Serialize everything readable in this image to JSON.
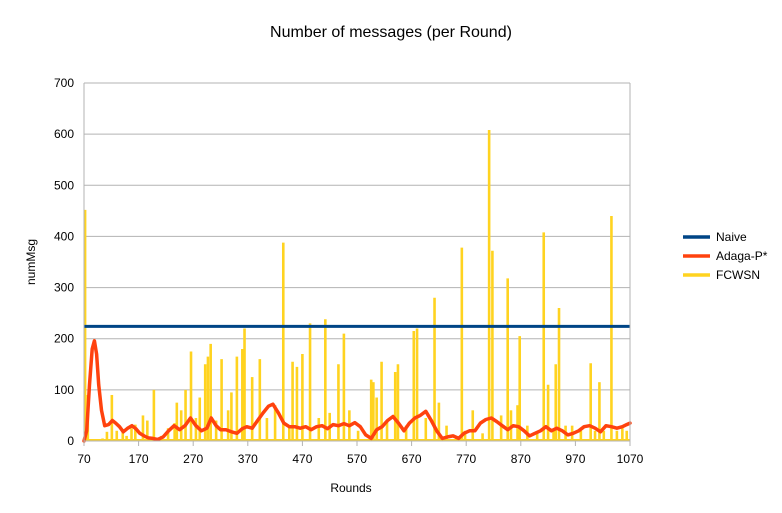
{
  "chart_data": {
    "type": "line",
    "title": "Number of messages (per Round)",
    "xlabel": "Rounds",
    "ylabel": "numMsg",
    "xlim": [
      70,
      1070
    ],
    "ylim": [
      0,
      700
    ],
    "x_ticks": [
      "70",
      "170",
      "270",
      "370",
      "470",
      "570",
      "670",
      "770",
      "870",
      "970",
      "1070"
    ],
    "y_ticks": [
      "0",
      "100",
      "200",
      "300",
      "400",
      "500",
      "600",
      "700"
    ],
    "grid": "horizontal",
    "legend_position": "right",
    "series": [
      {
        "name": "Naive",
        "color": "#004586",
        "points": [
          [
            70,
            224
          ],
          [
            1070,
            224
          ]
        ]
      },
      {
        "name": "Adaga-P*",
        "color": "#ff420e",
        "points": [
          [
            70,
            0
          ],
          [
            75,
            20
          ],
          [
            80,
            110
          ],
          [
            85,
            180
          ],
          [
            89,
            196
          ],
          [
            93,
            170
          ],
          [
            97,
            110
          ],
          [
            102,
            60
          ],
          [
            108,
            30
          ],
          [
            115,
            32
          ],
          [
            122,
            40
          ],
          [
            128,
            35
          ],
          [
            135,
            28
          ],
          [
            142,
            18
          ],
          [
            150,
            25
          ],
          [
            158,
            30
          ],
          [
            165,
            24
          ],
          [
            172,
            15
          ],
          [
            180,
            10
          ],
          [
            188,
            6
          ],
          [
            196,
            5
          ],
          [
            205,
            3
          ],
          [
            215,
            8
          ],
          [
            225,
            20
          ],
          [
            235,
            30
          ],
          [
            245,
            22
          ],
          [
            255,
            30
          ],
          [
            265,
            45
          ],
          [
            275,
            30
          ],
          [
            285,
            20
          ],
          [
            295,
            25
          ],
          [
            303,
            45
          ],
          [
            312,
            30
          ],
          [
            320,
            22
          ],
          [
            330,
            22
          ],
          [
            340,
            18
          ],
          [
            350,
            15
          ],
          [
            360,
            24
          ],
          [
            368,
            28
          ],
          [
            378,
            25
          ],
          [
            388,
            40
          ],
          [
            398,
            55
          ],
          [
            408,
            68
          ],
          [
            416,
            72
          ],
          [
            426,
            55
          ],
          [
            436,
            35
          ],
          [
            446,
            28
          ],
          [
            456,
            28
          ],
          [
            466,
            25
          ],
          [
            476,
            28
          ],
          [
            486,
            22
          ],
          [
            496,
            28
          ],
          [
            506,
            30
          ],
          [
            516,
            24
          ],
          [
            526,
            32
          ],
          [
            536,
            30
          ],
          [
            546,
            34
          ],
          [
            556,
            30
          ],
          [
            566,
            36
          ],
          [
            576,
            28
          ],
          [
            586,
            12
          ],
          [
            596,
            5
          ],
          [
            606,
            22
          ],
          [
            616,
            28
          ],
          [
            626,
            40
          ],
          [
            636,
            48
          ],
          [
            646,
            35
          ],
          [
            656,
            20
          ],
          [
            666,
            35
          ],
          [
            676,
            45
          ],
          [
            686,
            50
          ],
          [
            696,
            58
          ],
          [
            706,
            40
          ],
          [
            716,
            20
          ],
          [
            726,
            5
          ],
          [
            736,
            8
          ],
          [
            746,
            10
          ],
          [
            756,
            5
          ],
          [
            766,
            15
          ],
          [
            776,
            20
          ],
          [
            786,
            20
          ],
          [
            796,
            35
          ],
          [
            806,
            42
          ],
          [
            816,
            45
          ],
          [
            826,
            38
          ],
          [
            836,
            30
          ],
          [
            846,
            22
          ],
          [
            856,
            30
          ],
          [
            866,
            28
          ],
          [
            876,
            20
          ],
          [
            886,
            10
          ],
          [
            896,
            15
          ],
          [
            906,
            20
          ],
          [
            916,
            28
          ],
          [
            926,
            20
          ],
          [
            936,
            25
          ],
          [
            946,
            20
          ],
          [
            956,
            12
          ],
          [
            966,
            15
          ],
          [
            976,
            20
          ],
          [
            986,
            28
          ],
          [
            996,
            30
          ],
          [
            1006,
            25
          ],
          [
            1016,
            18
          ],
          [
            1026,
            30
          ],
          [
            1036,
            28
          ],
          [
            1046,
            25
          ],
          [
            1056,
            28
          ],
          [
            1064,
            32
          ],
          [
            1070,
            35
          ]
        ]
      },
      {
        "name": "FCWSN",
        "color": "#ffd320",
        "spikes": [
          [
            72,
            452
          ],
          [
            77,
            90
          ],
          [
            104,
            5
          ],
          [
            112,
            18
          ],
          [
            121,
            90
          ],
          [
            130,
            20
          ],
          [
            141,
            22
          ],
          [
            148,
            10
          ],
          [
            157,
            25
          ],
          [
            164,
            32
          ],
          [
            178,
            50
          ],
          [
            186,
            40
          ],
          [
            198,
            100
          ],
          [
            212,
            10
          ],
          [
            224,
            25
          ],
          [
            236,
            35
          ],
          [
            240,
            75
          ],
          [
            248,
            60
          ],
          [
            256,
            100
          ],
          [
            266,
            175
          ],
          [
            275,
            45
          ],
          [
            282,
            85
          ],
          [
            292,
            150
          ],
          [
            297,
            165
          ],
          [
            302,
            190
          ],
          [
            312,
            40
          ],
          [
            322,
            160
          ],
          [
            334,
            60
          ],
          [
            340,
            95
          ],
          [
            350,
            165
          ],
          [
            360,
            180
          ],
          [
            364,
            220
          ],
          [
            378,
            125
          ],
          [
            392,
            160
          ],
          [
            405,
            45
          ],
          [
            420,
            70
          ],
          [
            435,
            388
          ],
          [
            446,
            30
          ],
          [
            452,
            155
          ],
          [
            460,
            145
          ],
          [
            470,
            170
          ],
          [
            484,
            230
          ],
          [
            500,
            45
          ],
          [
            512,
            238
          ],
          [
            520,
            55
          ],
          [
            536,
            150
          ],
          [
            546,
            210
          ],
          [
            556,
            60
          ],
          [
            572,
            20
          ],
          [
            596,
            120
          ],
          [
            600,
            115
          ],
          [
            606,
            85
          ],
          [
            615,
            155
          ],
          [
            625,
            40
          ],
          [
            640,
            135
          ],
          [
            645,
            150
          ],
          [
            660,
            30
          ],
          [
            674,
            215
          ],
          [
            680,
            220
          ],
          [
            696,
            45
          ],
          [
            712,
            280
          ],
          [
            720,
            75
          ],
          [
            734,
            30
          ],
          [
            752,
            10
          ],
          [
            762,
            378
          ],
          [
            768,
            20
          ],
          [
            782,
            60
          ],
          [
            800,
            15
          ],
          [
            812,
            608
          ],
          [
            818,
            372
          ],
          [
            834,
            50
          ],
          [
            846,
            318
          ],
          [
            852,
            60
          ],
          [
            864,
            70
          ],
          [
            868,
            205
          ],
          [
            882,
            30
          ],
          [
            900,
            15
          ],
          [
            912,
            408
          ],
          [
            920,
            110
          ],
          [
            930,
            20
          ],
          [
            934,
            150
          ],
          [
            940,
            260
          ],
          [
            952,
            30
          ],
          [
            964,
            30
          ],
          [
            980,
            20
          ],
          [
            998,
            152
          ],
          [
            1006,
            20
          ],
          [
            1014,
            115
          ],
          [
            1022,
            20
          ],
          [
            1036,
            440
          ],
          [
            1046,
            20
          ],
          [
            1056,
            25
          ],
          [
            1064,
            20
          ]
        ]
      }
    ]
  }
}
